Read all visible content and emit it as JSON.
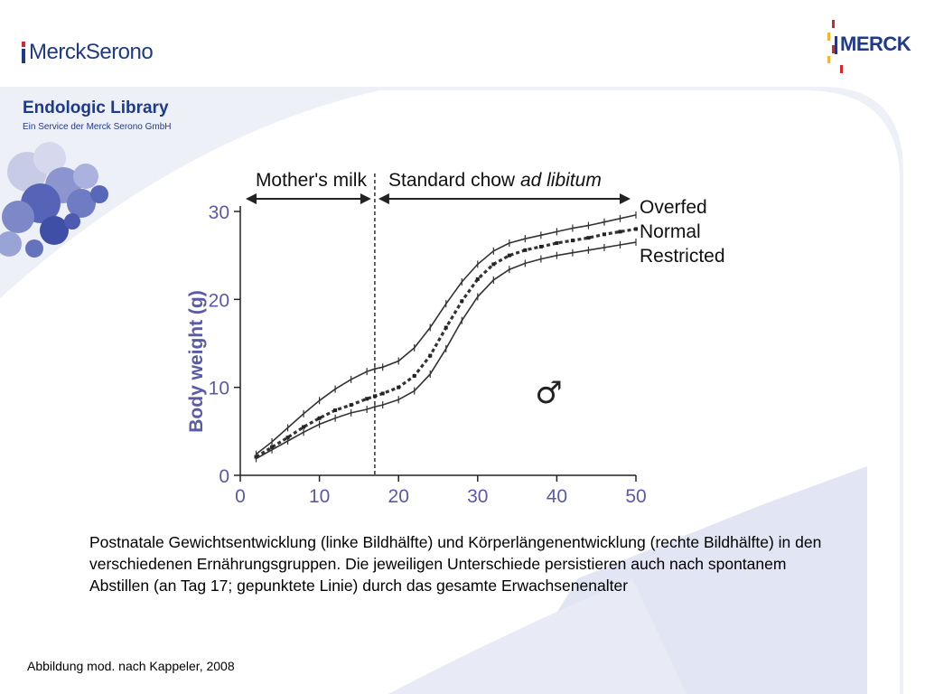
{
  "header": {
    "left_logo_text": "MerckSerono",
    "right_logo_text": "MERCK"
  },
  "library": {
    "title": "Endologic Library",
    "subtitle": "Ein Service der Merck Serono GmbH"
  },
  "colors": {
    "brand_blue": "#1f3a8a",
    "accent_red": "#d62828",
    "accent_yellow": "#f2b632",
    "ylabel_color": "#5a5aa6",
    "panel_bg": "#dfe2f2"
  },
  "chart_data": {
    "type": "line",
    "ylabel": "Body weight (g)",
    "xlabel": "",
    "xlim": [
      0,
      50
    ],
    "ylim": [
      0,
      30
    ],
    "xticks": [
      "0",
      "10",
      "20",
      "30",
      "40",
      "50"
    ],
    "yticks": [
      "0",
      "10",
      "20",
      "30"
    ],
    "symbol": "♂",
    "phases": [
      {
        "label": "Mother's milk",
        "from": 0,
        "to": 17
      },
      {
        "label_plain": "Standard chow ",
        "label_italic": "ad libitum",
        "from": 17,
        "to": 50
      }
    ],
    "weaning_day": 17,
    "series": [
      {
        "name": "Overfed",
        "style": "dotted",
        "x": [
          2,
          4,
          6,
          8,
          10,
          12,
          14,
          16,
          17,
          18,
          20,
          22,
          24,
          26,
          28,
          30,
          32,
          34,
          36,
          38,
          40,
          42,
          44,
          46,
          48,
          50
        ],
        "y": [
          2.4,
          3.8,
          5.4,
          7.0,
          8.5,
          9.8,
          10.9,
          11.8,
          12.1,
          12.3,
          13.0,
          14.5,
          16.8,
          19.5,
          22.0,
          24.0,
          25.5,
          26.4,
          26.9,
          27.3,
          27.7,
          28.1,
          28.4,
          28.8,
          29.2,
          29.6
        ]
      },
      {
        "name": "Normal",
        "style": "dashed",
        "x": [
          2,
          4,
          6,
          8,
          10,
          12,
          14,
          16,
          17,
          18,
          20,
          22,
          24,
          26,
          28,
          30,
          32,
          34,
          36,
          38,
          40,
          42,
          44,
          46,
          48,
          50
        ],
        "y": [
          2.1,
          3.2,
          4.3,
          5.5,
          6.5,
          7.4,
          8.0,
          8.7,
          9.0,
          9.3,
          10.0,
          11.3,
          13.6,
          16.8,
          19.8,
          22.3,
          24.0,
          25.0,
          25.6,
          26.0,
          26.4,
          26.7,
          27.0,
          27.4,
          27.7,
          28.0
        ]
      },
      {
        "name": "Restricted",
        "style": "dotted",
        "x": [
          2,
          4,
          6,
          8,
          10,
          12,
          14,
          16,
          17,
          18,
          20,
          22,
          24,
          26,
          28,
          30,
          32,
          34,
          36,
          38,
          40,
          42,
          44,
          46,
          48,
          50
        ],
        "y": [
          1.9,
          2.9,
          3.9,
          4.9,
          5.8,
          6.5,
          7.1,
          7.5,
          7.8,
          8.0,
          8.6,
          9.6,
          11.5,
          14.4,
          17.6,
          20.3,
          22.2,
          23.4,
          24.1,
          24.6,
          25.0,
          25.3,
          25.6,
          25.9,
          26.2,
          26.5
        ]
      }
    ]
  },
  "caption": "Postnatale Gewichtsentwicklung (linke Bildhälfte) und Körperlängenentwicklung (rechte Bildhälfte) in den verschiedenen Ernährungsgruppen. Die jeweiligen Unterschiede persistieren auch nach spontanem Abstillen (an Tag 17; gepunktete Linie) durch das gesamte Erwachsenenalter",
  "source": "Abbildung mod. nach Kappeler, 2008"
}
